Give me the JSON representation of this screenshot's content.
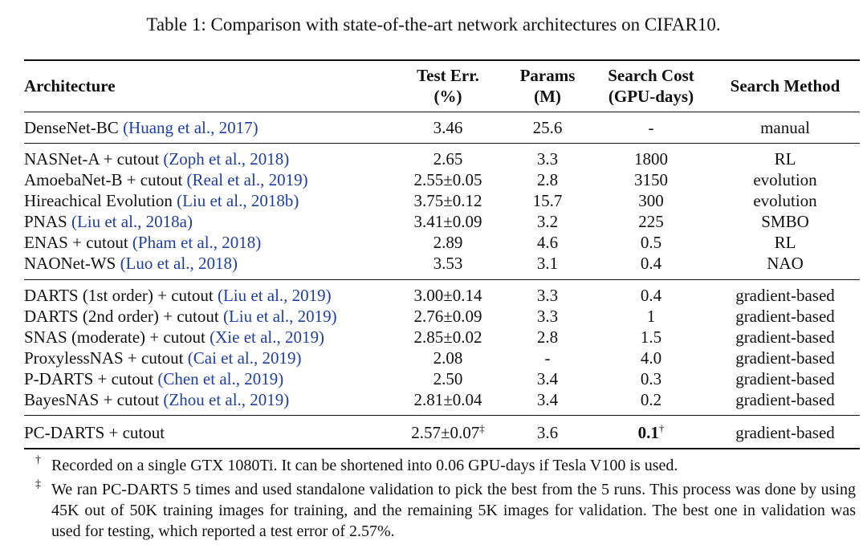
{
  "caption": "Table 1: Comparison with state-of-the-art network architectures on CIFAR10.",
  "headers": {
    "architecture": "Architecture",
    "test_err_line1": "Test Err.",
    "test_err_line2": "(%)",
    "params_line1": "Params",
    "params_line2": "(M)",
    "cost_line1": "Search Cost",
    "cost_line2": "(GPU-days)",
    "method": "Search Method"
  },
  "rows": [
    {
      "name": "DenseNet-BC",
      "cite": "(Huang et al., 2017)",
      "err": "3.46",
      "params": "25.6",
      "cost": "-",
      "method": "manual"
    },
    {
      "name": "NASNet-A + cutout",
      "cite": "(Zoph et al., 2018)",
      "err": "2.65",
      "params": "3.3",
      "cost": "1800",
      "method": "RL"
    },
    {
      "name": "AmoebaNet-B + cutout",
      "cite": "(Real et al., 2019)",
      "err": "2.55±0.05",
      "params": "2.8",
      "cost": "3150",
      "method": "evolution"
    },
    {
      "name": "Hireachical Evolution",
      "cite": "(Liu et al., 2018b)",
      "err": "3.75±0.12",
      "params": "15.7",
      "cost": "300",
      "method": "evolution"
    },
    {
      "name": "PNAS",
      "cite": "(Liu et al., 2018a)",
      "err": "3.41±0.09",
      "params": "3.2",
      "cost": "225",
      "method": "SMBO"
    },
    {
      "name": "ENAS + cutout",
      "cite": "(Pham et al., 2018)",
      "err": "2.89",
      "params": "4.6",
      "cost": "0.5",
      "method": "RL"
    },
    {
      "name": "NAONet-WS",
      "cite": "(Luo et al., 2018)",
      "err": "3.53",
      "params": "3.1",
      "cost": "0.4",
      "method": "NAO"
    },
    {
      "name": "DARTS (1st order) + cutout",
      "cite": "(Liu et al., 2019)",
      "err": "3.00±0.14",
      "params": "3.3",
      "cost": "0.4",
      "method": "gradient-based"
    },
    {
      "name": "DARTS (2nd order) + cutout",
      "cite": "(Liu et al., 2019)",
      "err": "2.76±0.09",
      "params": "3.3",
      "cost": "1",
      "method": "gradient-based"
    },
    {
      "name": "SNAS (moderate) + cutout",
      "cite": "(Xie et al., 2019)",
      "err": "2.85±0.02",
      "params": "2.8",
      "cost": "1.5",
      "method": "gradient-based"
    },
    {
      "name": "ProxylessNAS + cutout",
      "cite": "(Cai et al., 2019)",
      "err": "2.08",
      "params": "-",
      "cost": "4.0",
      "method": "gradient-based"
    },
    {
      "name": "P-DARTS + cutout",
      "cite": "(Chen et al., 2019)",
      "err": "2.50",
      "params": "3.4",
      "cost": "0.3",
      "method": "gradient-based"
    },
    {
      "name": "BayesNAS + cutout",
      "cite": "(Zhou et al., 2019)",
      "err": "2.81±0.04",
      "params": "3.4",
      "cost": "0.2",
      "method": "gradient-based"
    }
  ],
  "final_row": {
    "name": "PC-DARTS + cutout",
    "err": "2.57±0.07",
    "err_mark": "‡",
    "params": "3.6",
    "cost": "0.1",
    "cost_mark": "†",
    "method": "gradient-based"
  },
  "notes": [
    {
      "mark": "†",
      "text": "Recorded on a single GTX 1080Ti. It can be shortened into 0.06 GPU-days if Tesla V100 is used."
    },
    {
      "mark": "‡",
      "text": "We ran PC-DARTS 5 times and used standalone validation to pick the best from the 5 runs. This process was done by using 45K out of 50K training images for training, and the remaining 5K images for validation. The best one in validation was used for testing, which reported a test error of 2.57%."
    }
  ]
}
